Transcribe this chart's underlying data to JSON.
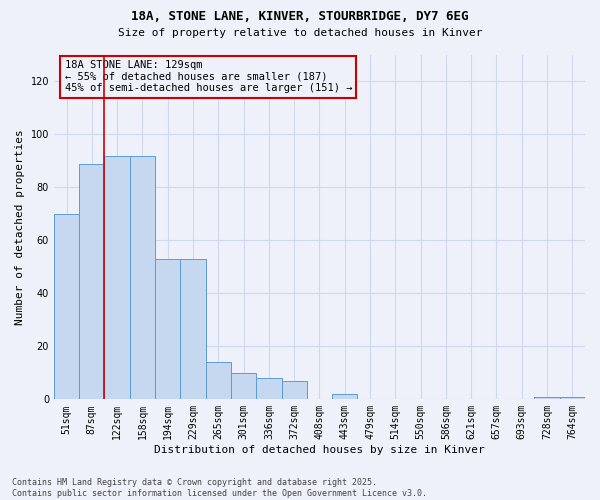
{
  "title1": "18A, STONE LANE, KINVER, STOURBRIDGE, DY7 6EG",
  "title2": "Size of property relative to detached houses in Kinver",
  "xlabel": "Distribution of detached houses by size in Kinver",
  "ylabel": "Number of detached properties",
  "categories": [
    "51sqm",
    "87sqm",
    "122sqm",
    "158sqm",
    "194sqm",
    "229sqm",
    "265sqm",
    "301sqm",
    "336sqm",
    "372sqm",
    "408sqm",
    "443sqm",
    "479sqm",
    "514sqm",
    "550sqm",
    "586sqm",
    "621sqm",
    "657sqm",
    "693sqm",
    "728sqm",
    "764sqm"
  ],
  "values": [
    70,
    89,
    92,
    92,
    53,
    53,
    14,
    10,
    8,
    7,
    0,
    2,
    0,
    0,
    0,
    0,
    0,
    0,
    0,
    1,
    1
  ],
  "bar_color": "#c5d8f0",
  "bar_edge_color": "#5b9bd5",
  "ylim": [
    0,
    130
  ],
  "yticks": [
    0,
    20,
    40,
    60,
    80,
    100,
    120
  ],
  "vline_color": "#cc0000",
  "vline_index": 2.0,
  "annotation_text": "18A STONE LANE: 129sqm\n← 55% of detached houses are smaller (187)\n45% of semi-detached houses are larger (151) →",
  "footer_text": "Contains HM Land Registry data © Crown copyright and database right 2025.\nContains public sector information licensed under the Open Government Licence v3.0.",
  "background_color": "#eef1f9",
  "grid_color": "#d0d8ef"
}
